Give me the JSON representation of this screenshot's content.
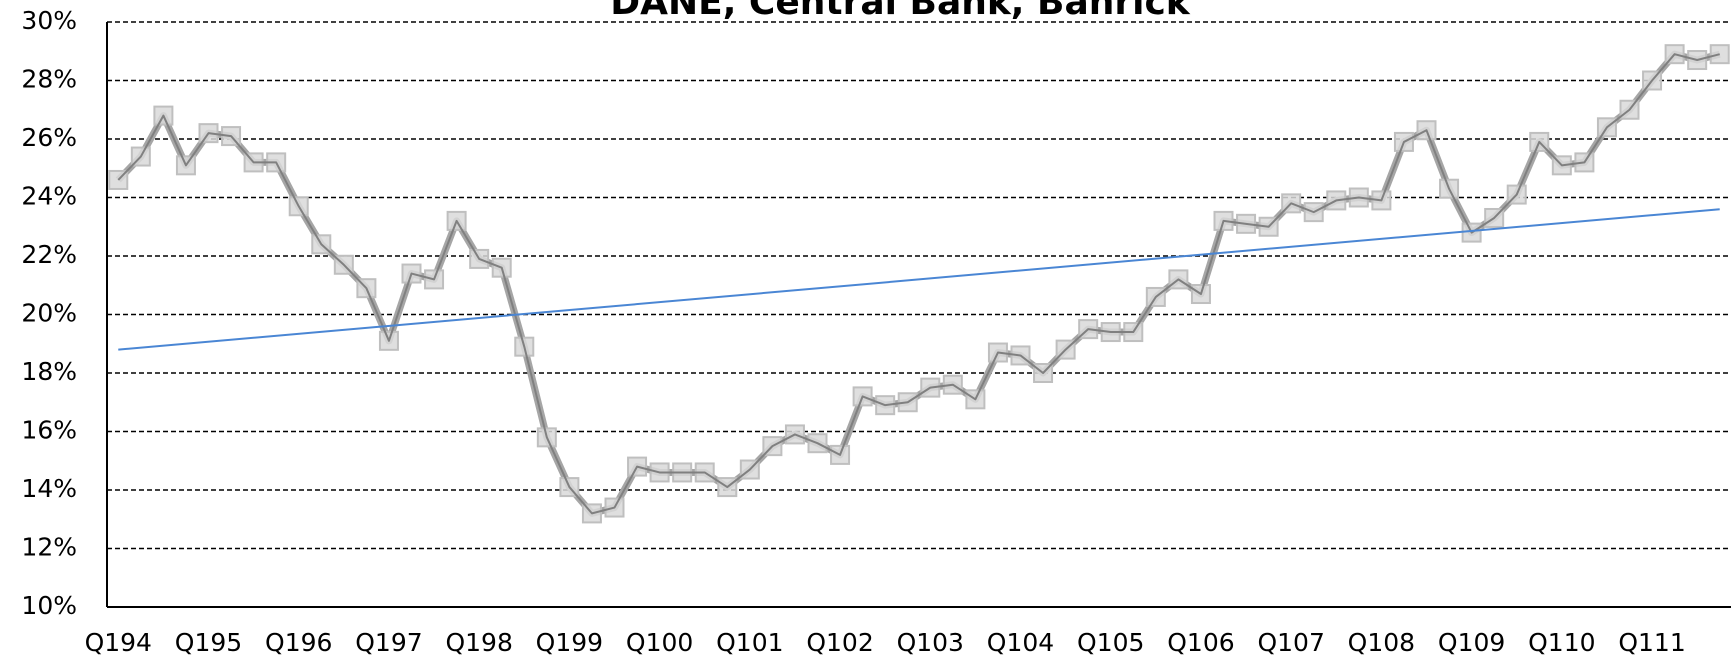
{
  "chart_data": {
    "type": "line",
    "title": "DANE, Central Bank, Banrick",
    "categories": [
      "Q194",
      null,
      null,
      null,
      "Q195",
      null,
      null,
      null,
      "Q196",
      null,
      null,
      null,
      "Q197",
      null,
      null,
      null,
      "Q198",
      null,
      null,
      null,
      "Q199",
      null,
      null,
      null,
      "Q100",
      null,
      null,
      null,
      "Q101",
      null,
      null,
      null,
      "Q102",
      null,
      null,
      null,
      "Q103",
      null,
      null,
      null,
      "Q104",
      null,
      null,
      null,
      "Q105",
      null,
      null,
      null,
      "Q106",
      null,
      null,
      null,
      "Q107",
      null,
      null,
      null,
      "Q108",
      null,
      null,
      null,
      "Q109",
      null,
      null,
      null,
      "Q110",
      null,
      null,
      null,
      "Q111",
      null,
      null,
      null
    ],
    "series": [
      {
        "color": "#a6a6a6",
        "values": [
          24.6,
          25.4,
          26.8,
          25.1,
          26.2,
          26.1,
          25.2,
          25.2,
          23.7,
          22.4,
          21.7,
          20.9,
          19.1,
          21.4,
          21.2,
          23.2,
          21.9,
          21.6,
          18.9,
          15.8,
          14.1,
          13.2,
          13.4,
          14.8,
          14.6,
          14.6,
          14.6,
          14.1,
          14.7,
          15.5,
          15.9,
          15.6,
          15.2,
          17.2,
          16.9,
          17.0,
          17.5,
          17.6,
          17.1,
          18.7,
          18.6,
          18.0,
          18.8,
          19.5,
          19.4,
          19.4,
          20.6,
          21.2,
          20.7,
          23.2,
          23.1,
          23.0,
          23.8,
          23.5,
          23.9,
          24.0,
          23.9,
          25.9,
          26.3,
          24.3,
          22.8,
          23.3,
          24.1,
          25.9,
          25.1,
          25.2,
          26.4,
          27.0,
          28.0,
          28.9,
          28.7,
          28.9
        ]
      }
    ],
    "trendline": {
      "color": "#4a86d4",
      "values": [
        18.8,
        23.6
      ]
    },
    "ylim": [
      10,
      30
    ],
    "yticks": [
      {
        "value": 10,
        "label": "10%"
      },
      {
        "value": 12,
        "label": "12%"
      },
      {
        "value": 14,
        "label": "14%"
      },
      {
        "value": 16,
        "label": "16%"
      },
      {
        "value": 18,
        "label": "18%"
      },
      {
        "value": 20,
        "label": "20%"
      },
      {
        "value": 22,
        "label": "22%"
      },
      {
        "value": 24,
        "label": "24%"
      },
      {
        "value": 26,
        "label": "26%"
      },
      {
        "value": 28,
        "label": "28%"
      },
      {
        "value": 30,
        "label": "30%"
      }
    ],
    "grid": true
  }
}
